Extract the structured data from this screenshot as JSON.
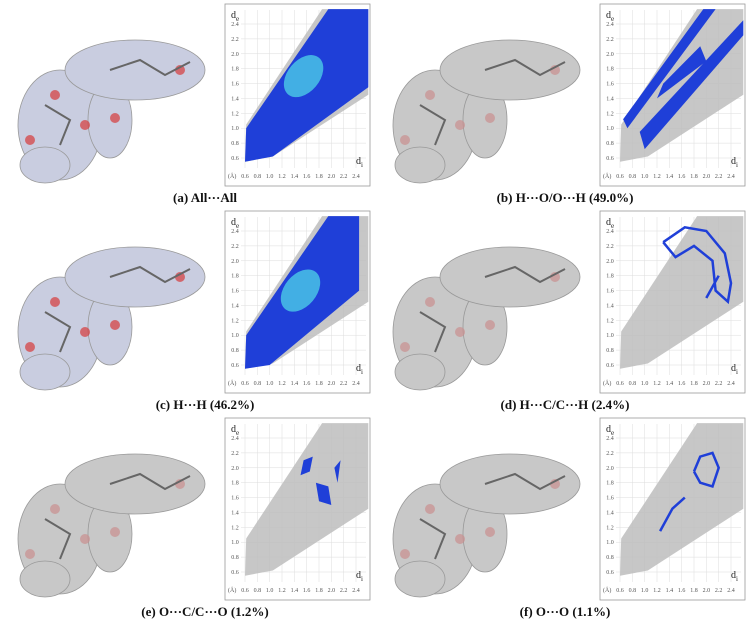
{
  "figure": {
    "panels": [
      {
        "caption": "(a) All···All"
      },
      {
        "caption": "(b) H···O/O···H (49.0%)"
      },
      {
        "caption": "(c) H···H (46.2%)"
      },
      {
        "caption": "(d) H···C/C···H (2.4%)"
      },
      {
        "caption": "(e) O···C/C···O (1.2%)"
      },
      {
        "caption": "(f) O···O (1.1%)"
      }
    ],
    "axis": {
      "ticks": [
        "0.6",
        "0.8",
        "1.0",
        "1.2",
        "1.4",
        "1.6",
        "1.8",
        "2.0",
        "2.2",
        "2.4"
      ],
      "y_label": "d",
      "y_label_sub": "e",
      "x_label": "d",
      "x_label_sub": "i",
      "unit": "(Å)"
    }
  }
}
